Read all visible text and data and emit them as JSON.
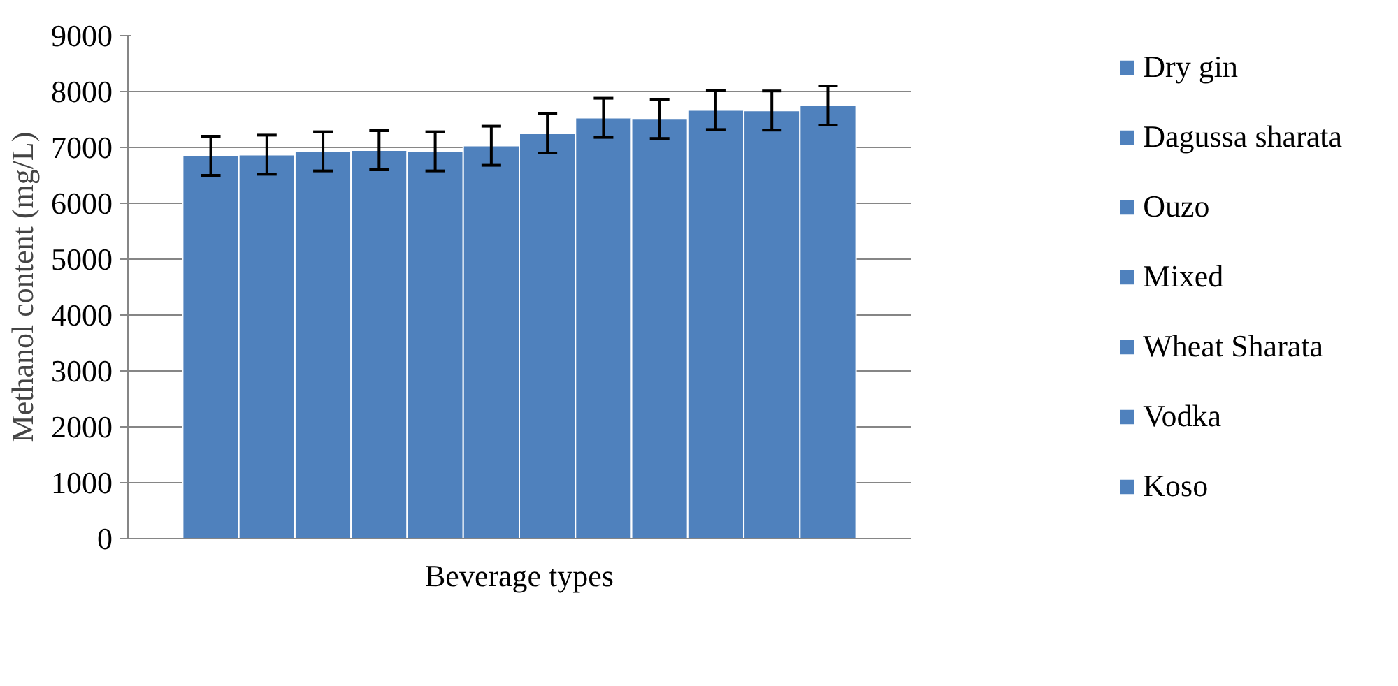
{
  "chart_data": {
    "type": "bar",
    "ylabel": "Methanol content (mg/L)",
    "categories": [
      "Beverage types"
    ],
    "series": [
      {
        "name": "Dry gin",
        "color": "#4f81bd",
        "values": [
          6850
        ],
        "errors": [
          350
        ]
      },
      {
        "name": "Dagussa sharata",
        "color": "#4f81bd",
        "values": [
          6870
        ],
        "errors": [
          350
        ]
      },
      {
        "name": "Ouzo",
        "color": "#4f81bd",
        "values": [
          6930
        ],
        "errors": [
          350
        ]
      },
      {
        "name": "Mixed",
        "color": "#4f81bd",
        "values": [
          6950
        ],
        "errors": [
          350
        ]
      },
      {
        "name": "Wheat Sharata",
        "color": "#4f81bd",
        "values": [
          6930
        ],
        "errors": [
          350
        ]
      },
      {
        "name": "Vodka",
        "color": "#4f81bd",
        "values": [
          7030
        ],
        "errors": [
          350
        ]
      },
      {
        "name": "Koso",
        "color": "#4f81bd",
        "values": [
          7250
        ],
        "errors": [
          350
        ]
      },
      {
        "color": "#4f81bd",
        "values": [
          7530
        ],
        "errors": [
          350
        ]
      },
      {
        "color": "#4f81bd",
        "values": [
          7510
        ],
        "errors": [
          350
        ]
      },
      {
        "color": "#4f81bd",
        "values": [
          7670
        ],
        "errors": [
          350
        ]
      },
      {
        "color": "#4f81bd",
        "values": [
          7660
        ],
        "errors": [
          350
        ]
      },
      {
        "color": "#4f81bd",
        "values": [
          7750
        ],
        "errors": [
          350
        ]
      }
    ],
    "ylim": [
      0,
      9000
    ],
    "yticks": [
      0,
      1000,
      2000,
      3000,
      4000,
      5000,
      6000,
      7000,
      8000,
      9000
    ],
    "grid": "y",
    "legend": "right"
  }
}
